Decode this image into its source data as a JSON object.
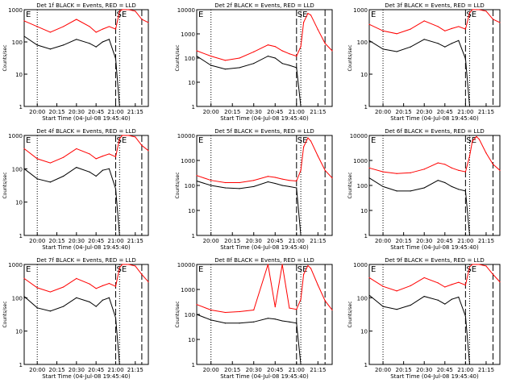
{
  "figure": {
    "x_axis_label": "Start Time (04-Jul-08 19:45:40)",
    "y_axis_label": "Counts/sec",
    "time_ticks": [
      "20:00",
      "20:15",
      "20:30",
      "20:45",
      "21:00",
      "21:15"
    ],
    "log_ticks": [
      "1",
      "10",
      "100",
      "1000",
      "10000"
    ],
    "colors": {
      "events": "#000000",
      "lld": "#ff0000",
      "background": "#ffffff"
    }
  },
  "chart_data": [
    {
      "type": "line",
      "title": "Det 1f BLACK = Events, RED = LLD",
      "markers": [
        "E",
        "SE"
      ],
      "y_max": 1000,
      "x": [
        "19:50",
        "20:00",
        "20:10",
        "20:20",
        "20:30",
        "20:40",
        "20:45",
        "20:50",
        "20:55",
        "21:00",
        "21:03",
        "21:05",
        "21:08",
        "21:10",
        "21:15",
        "21:20",
        "21:25"
      ],
      "series": [
        {
          "name": "BLACK = Events",
          "values": [
            150,
            80,
            60,
            80,
            120,
            90,
            70,
            100,
            120,
            30,
            1,
            null,
            null,
            null,
            null,
            null,
            null
          ]
        },
        {
          "name": "RED = LLD",
          "values": [
            450,
            300,
            200,
            300,
            500,
            300,
            200,
            250,
            300,
            250,
            900,
            1000,
            1000,
            1000,
            900,
            500,
            400
          ]
        }
      ]
    },
    {
      "type": "line",
      "title": "Det 2f BLACK = Events, RED = LLD",
      "markers": [
        "E",
        "SE"
      ],
      "y_max": 10000,
      "x": [
        "19:50",
        "20:00",
        "20:10",
        "20:20",
        "20:30",
        "20:40",
        "20:45",
        "20:50",
        "20:55",
        "21:00",
        "21:03",
        "21:05",
        "21:08",
        "21:10",
        "21:15",
        "21:20",
        "21:25"
      ],
      "series": [
        {
          "name": "BLACK = Events",
          "values": [
            120,
            50,
            35,
            40,
            60,
            120,
            100,
            60,
            50,
            40,
            1,
            null,
            null,
            null,
            null,
            null,
            null
          ]
        },
        {
          "name": "RED = LLD",
          "values": [
            200,
            120,
            80,
            100,
            180,
            350,
            300,
            200,
            150,
            120,
            300,
            3000,
            7000,
            6000,
            1500,
            400,
            200
          ]
        }
      ]
    },
    {
      "type": "line",
      "title": "Det 3f BLACK = Events, RED = LLD",
      "markers": [
        "E",
        "SE"
      ],
      "y_max": 1000,
      "x": [
        "19:50",
        "20:00",
        "20:10",
        "20:20",
        "20:30",
        "20:40",
        "20:45",
        "20:50",
        "20:55",
        "21:00",
        "21:03",
        "21:05",
        "21:08",
        "21:10",
        "21:15",
        "21:20",
        "21:25"
      ],
      "series": [
        {
          "name": "BLACK = Events",
          "values": [
            110,
            60,
            50,
            70,
            120,
            90,
            70,
            90,
            110,
            30,
            1,
            null,
            null,
            null,
            null,
            null,
            null
          ]
        },
        {
          "name": "RED = LLD",
          "values": [
            350,
            220,
            180,
            250,
            450,
            300,
            220,
            260,
            300,
            250,
            800,
            1000,
            1000,
            1000,
            900,
            500,
            400
          ]
        }
      ]
    },
    {
      "type": "line",
      "title": "Det 4f BLACK = Events, RED = LLD",
      "markers": [
        "E",
        "SE"
      ],
      "y_max": 1000,
      "x": [
        "19:50",
        "20:00",
        "20:10",
        "20:20",
        "20:30",
        "20:40",
        "20:45",
        "20:50",
        "20:55",
        "21:00",
        "21:03",
        "21:05",
        "21:08",
        "21:10",
        "21:15",
        "21:20",
        "21:25"
      ],
      "series": [
        {
          "name": "BLACK = Events",
          "values": [
            100,
            50,
            40,
            60,
            110,
            80,
            60,
            90,
            100,
            25,
            1,
            null,
            null,
            null,
            null,
            null,
            null
          ]
        },
        {
          "name": "RED = LLD",
          "values": [
            400,
            200,
            150,
            220,
            400,
            280,
            200,
            240,
            280,
            230,
            800,
            1000,
            1000,
            1000,
            900,
            500,
            350
          ]
        }
      ]
    },
    {
      "type": "line",
      "title": "Det 5f BLACK = Events, RED = LLD",
      "markers": [
        "E",
        "SE"
      ],
      "y_max": 10000,
      "x": [
        "19:50",
        "20:00",
        "20:10",
        "20:20",
        "20:30",
        "20:40",
        "20:45",
        "20:50",
        "20:55",
        "21:00",
        "21:03",
        "21:05",
        "21:08",
        "21:10",
        "21:15",
        "21:20",
        "21:25"
      ],
      "series": [
        {
          "name": "BLACK = Events",
          "values": [
            150,
            100,
            80,
            75,
            90,
            140,
            120,
            100,
            90,
            80,
            1,
            null,
            null,
            null,
            null,
            null,
            null
          ]
        },
        {
          "name": "RED = LLD",
          "values": [
            250,
            160,
            130,
            130,
            160,
            230,
            210,
            180,
            160,
            150,
            400,
            3500,
            8000,
            6000,
            1500,
            400,
            200
          ]
        }
      ]
    },
    {
      "type": "line",
      "title": "Det 6f BLACK = Events, RED = LLD",
      "markers": [
        "E",
        "SE"
      ],
      "y_max": 10000,
      "x": [
        "19:50",
        "20:00",
        "20:10",
        "20:20",
        "20:30",
        "20:40",
        "20:45",
        "20:50",
        "20:55",
        "21:00",
        "21:03",
        "21:05",
        "21:08",
        "21:10",
        "21:15",
        "21:20",
        "21:25"
      ],
      "series": [
        {
          "name": "BLACK = Events",
          "values": [
            200,
            90,
            60,
            60,
            80,
            160,
            130,
            90,
            70,
            60,
            1,
            null,
            null,
            null,
            null,
            null,
            null
          ]
        },
        {
          "name": "RED = LLD",
          "values": [
            500,
            350,
            300,
            320,
            450,
            800,
            700,
            500,
            400,
            350,
            1500,
            6000,
            9000,
            7000,
            2000,
            700,
            400
          ]
        }
      ]
    },
    {
      "type": "line",
      "title": "Det 7f BLACK = Events, RED = LLD",
      "markers": [
        "E",
        "SE"
      ],
      "y_max": 1000,
      "x": [
        "19:50",
        "20:00",
        "20:10",
        "20:20",
        "20:30",
        "20:40",
        "20:45",
        "20:50",
        "20:55",
        "21:00",
        "21:03",
        "21:05",
        "21:08",
        "21:10",
        "21:15",
        "21:20",
        "21:25"
      ],
      "series": [
        {
          "name": "BLACK = Events",
          "values": [
            110,
            50,
            40,
            55,
            100,
            75,
            55,
            85,
            100,
            25,
            1,
            null,
            null,
            null,
            null,
            null,
            null
          ]
        },
        {
          "name": "RED = LLD",
          "values": [
            380,
            200,
            150,
            210,
            380,
            260,
            190,
            230,
            270,
            220,
            800,
            1000,
            1000,
            1000,
            900,
            500,
            300
          ]
        }
      ]
    },
    {
      "type": "line",
      "title": "Det 8f BLACK = Events, RED = LLD",
      "markers": [
        "E",
        "SE"
      ],
      "y_max": 10000,
      "x": [
        "19:50",
        "20:00",
        "20:10",
        "20:20",
        "20:30",
        "20:40",
        "20:45",
        "20:50",
        "20:55",
        "21:00",
        "21:03",
        "21:05",
        "21:08",
        "21:10",
        "21:15",
        "21:20",
        "21:25"
      ],
      "series": [
        {
          "name": "BLACK = Events",
          "values": [
            100,
            60,
            45,
            45,
            50,
            70,
            65,
            55,
            50,
            45,
            1,
            null,
            null,
            null,
            null,
            null,
            null
          ]
        },
        {
          "name": "RED = LLD",
          "values": [
            250,
            150,
            120,
            130,
            150,
            10000,
            200,
            10000,
            180,
            160,
            400,
            4000,
            9000,
            7000,
            1500,
            350,
            150
          ]
        }
      ]
    },
    {
      "type": "line",
      "title": "Det 9f BLACK = Events, RED = LLD",
      "markers": [
        "E",
        "SE"
      ],
      "y_max": 1000,
      "x": [
        "19:50",
        "20:00",
        "20:10",
        "20:20",
        "20:30",
        "20:40",
        "20:45",
        "20:50",
        "20:55",
        "21:00",
        "21:03",
        "21:05",
        "21:08",
        "21:10",
        "21:15",
        "21:20",
        "21:25"
      ],
      "series": [
        {
          "name": "BLACK = Events",
          "values": [
            120,
            55,
            45,
            60,
            110,
            85,
            65,
            90,
            105,
            28,
            1,
            null,
            null,
            null,
            null,
            null,
            null
          ]
        },
        {
          "name": "RED = LLD",
          "values": [
            400,
            220,
            160,
            230,
            400,
            280,
            210,
            250,
            290,
            240,
            850,
            1000,
            1000,
            1000,
            900,
            500,
            300
          ]
        }
      ]
    }
  ]
}
